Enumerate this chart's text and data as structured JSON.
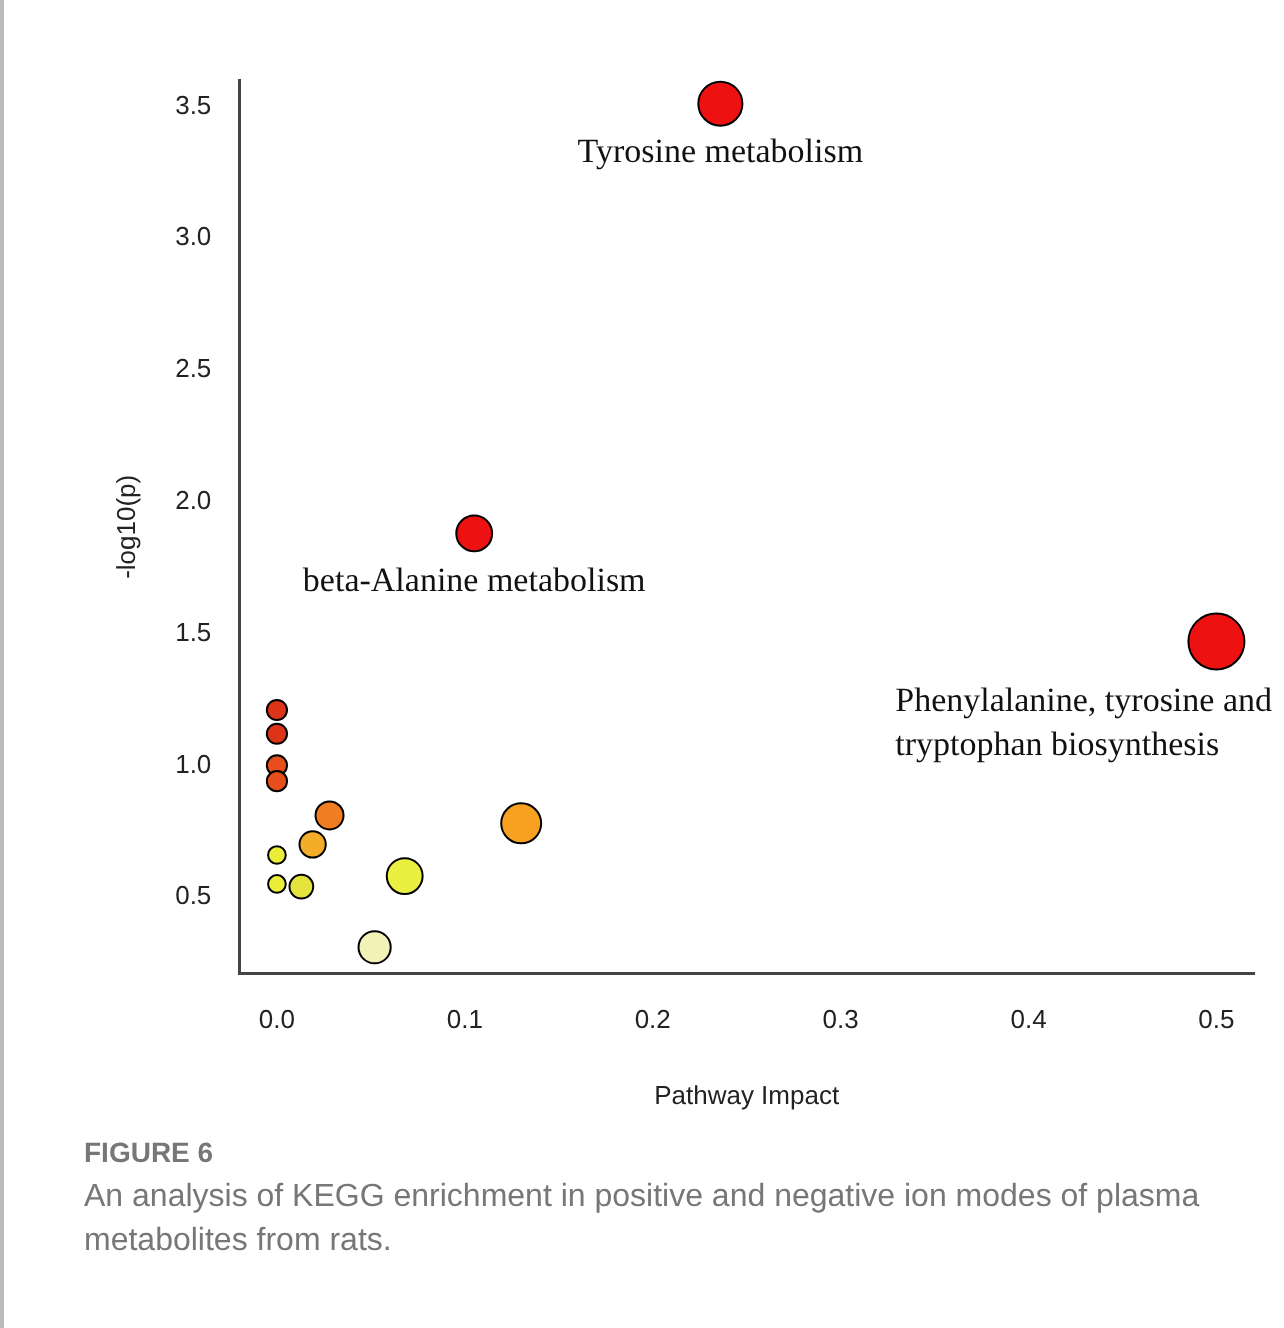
{
  "chart_data": {
    "type": "bubble",
    "xlabel": "Pathway Impact",
    "ylabel": "-log10(p)",
    "xlim": [
      -0.02,
      0.52
    ],
    "ylim": [
      0.21,
      3.6
    ],
    "xticks": [
      {
        "value": 0,
        "label": "0.0"
      },
      0.1,
      0.2,
      0.3,
      0.4,
      0.5
    ],
    "yticks": [
      0.5,
      {
        "value": 1,
        "label": "1.0"
      },
      1.5,
      {
        "value": 2,
        "label": "2.0"
      },
      2.5,
      {
        "value": 3,
        "label": "3.0"
      },
      3.5
    ],
    "grid": false,
    "legend": false,
    "series": [
      {
        "x": [
          0.236,
          0.105,
          0.5,
          0,
          0,
          0,
          0,
          0.028,
          0.019,
          0,
          0,
          0.013,
          0.068,
          0.052,
          0.13
        ],
        "values": [
          3.51,
          1.88,
          1.47,
          1.21,
          1.12,
          1.0,
          0.94,
          0.81,
          0.7,
          0.66,
          0.55,
          0.54,
          0.58,
          0.31,
          0.78
        ],
        "sizes": [
          0.62,
          0.41,
          1,
          0.13,
          0.13,
          0.13,
          0.13,
          0.25,
          0.22,
          0.1,
          0.1,
          0.18,
          0.41,
          0.33,
          0.51
        ],
        "colors": [
          "#ee1111",
          "#ee1111",
          "#ee1111",
          "#dd3318",
          "#dd3318",
          "#e84e1c",
          "#e84e1c",
          "#f07d22",
          "#f4ad28",
          "#ecec3a",
          "#ecec3a",
          "#e4e43c",
          "#eaf040",
          "#f2f2b8",
          "#f8a020"
        ]
      }
    ],
    "annotations": [
      {
        "text": "Tyrosine metabolism",
        "x": 0.236,
        "y": 3.51
      },
      {
        "text": "beta-Alanine metabolism",
        "x": 0.105,
        "y": 1.88
      },
      {
        "text": "Phenylalanine, tyrosine and tryptophan biosynthesis",
        "x": 0.5,
        "y": 1.47
      },
      "FIGURE 6",
      "An analysis of KEGG enrichment in positive and negative ion modes of plasma metabolites from rats."
    ]
  }
}
